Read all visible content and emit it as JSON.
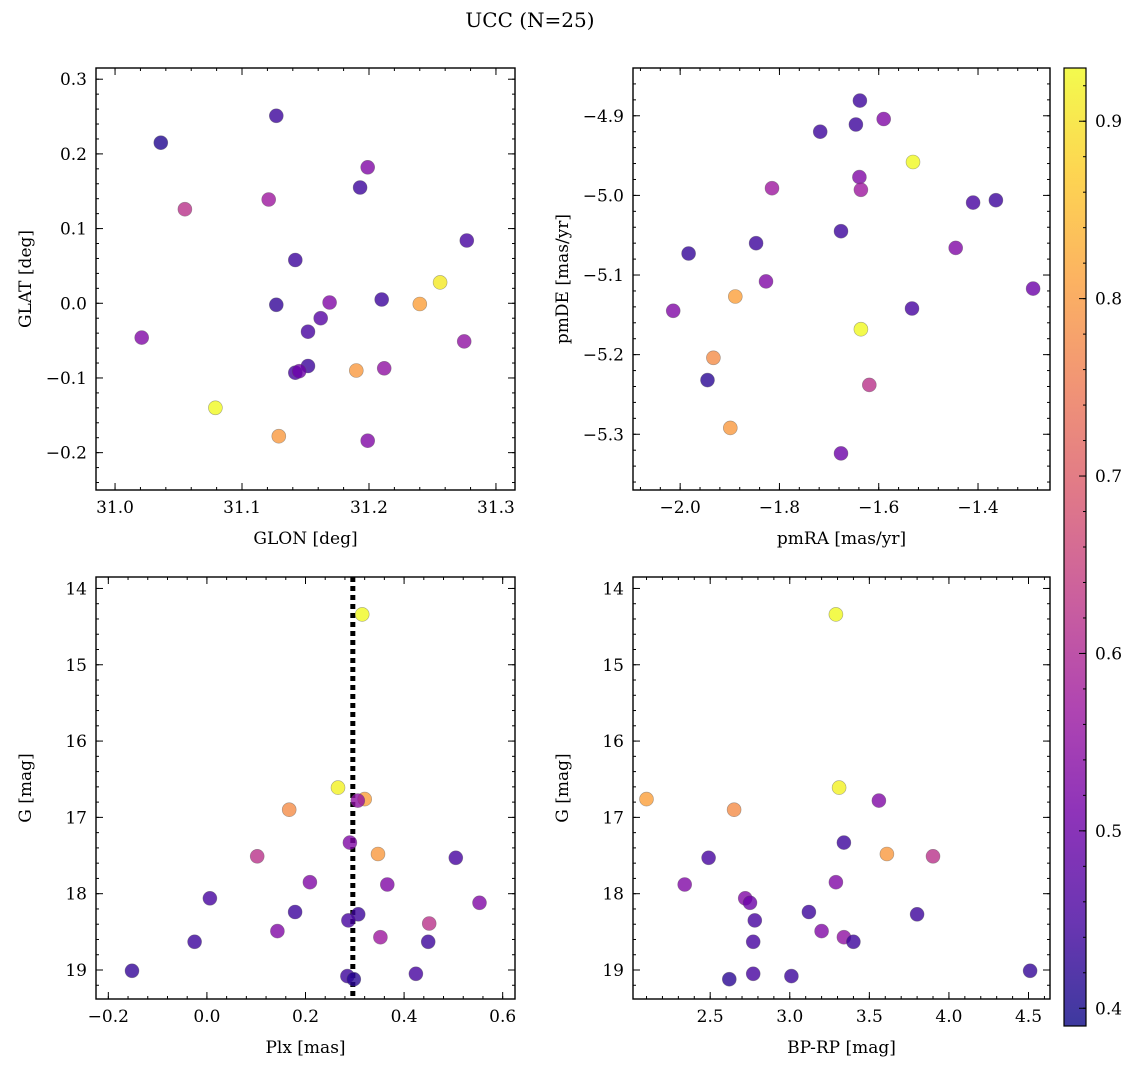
{
  "figure": {
    "title": "UCC (N=25)",
    "colormap": [
      "#0d0887",
      "#46039f",
      "#7201a8",
      "#9c179e",
      "#bd3786",
      "#d8576b",
      "#ed7953",
      "#fb9f3a",
      "#fdca26",
      "#f0f921"
    ],
    "marker_alpha": 0.8,
    "colorbar": {
      "ticks": [
        0.4,
        0.5,
        0.6,
        0.7,
        0.8,
        0.9
      ],
      "range": [
        0.39,
        0.93
      ]
    }
  },
  "chart_data": [
    {
      "id": "glon_glat",
      "type": "scatter",
      "xlabel": "GLON [deg]",
      "ylabel": "GLAT [deg]",
      "xlim": [
        30.985,
        31.315
      ],
      "ylim": [
        -0.25,
        0.315
      ],
      "xticks": [
        31.0,
        31.1,
        31.2,
        31.3
      ],
      "xtick_labels": [
        "31.0",
        "31.1",
        "31.2",
        "31.3"
      ],
      "yticks": [
        -0.2,
        -0.1,
        0.0,
        0.1,
        0.2,
        0.3
      ],
      "ytick_labels": [
        "−0.2",
        "−0.1",
        "0.0",
        "0.1",
        "0.2",
        "0.3"
      ],
      "invert_y": false,
      "points": [
        {
          "x": 31.036,
          "y": 0.215,
          "c": 0.41
        },
        {
          "x": 31.127,
          "y": 0.251,
          "c": 0.44
        },
        {
          "x": 31.055,
          "y": 0.126,
          "c": 0.62
        },
        {
          "x": 31.121,
          "y": 0.139,
          "c": 0.57
        },
        {
          "x": 31.199,
          "y": 0.182,
          "c": 0.53
        },
        {
          "x": 31.193,
          "y": 0.155,
          "c": 0.44
        },
        {
          "x": 31.277,
          "y": 0.084,
          "c": 0.45
        },
        {
          "x": 31.142,
          "y": 0.058,
          "c": 0.44
        },
        {
          "x": 31.256,
          "y": 0.028,
          "c": 0.91
        },
        {
          "x": 31.127,
          "y": -0.002,
          "c": 0.43
        },
        {
          "x": 31.169,
          "y": 0.001,
          "c": 0.53
        },
        {
          "x": 31.21,
          "y": 0.005,
          "c": 0.44
        },
        {
          "x": 31.24,
          "y": -0.001,
          "c": 0.81
        },
        {
          "x": 31.162,
          "y": -0.02,
          "c": 0.47
        },
        {
          "x": 31.152,
          "y": -0.038,
          "c": 0.45
        },
        {
          "x": 31.021,
          "y": -0.046,
          "c": 0.53
        },
        {
          "x": 31.275,
          "y": -0.051,
          "c": 0.55
        },
        {
          "x": 31.152,
          "y": -0.084,
          "c": 0.44
        },
        {
          "x": 31.142,
          "y": -0.093,
          "c": 0.45
        },
        {
          "x": 31.145,
          "y": -0.091,
          "c": 0.5
        },
        {
          "x": 31.19,
          "y": -0.09,
          "c": 0.8
        },
        {
          "x": 31.212,
          "y": -0.087,
          "c": 0.55
        },
        {
          "x": 31.079,
          "y": -0.14,
          "c": 0.93
        },
        {
          "x": 31.129,
          "y": -0.178,
          "c": 0.8
        },
        {
          "x": 31.199,
          "y": -0.184,
          "c": 0.53
        }
      ]
    },
    {
      "id": "pm",
      "type": "scatter",
      "xlabel": "pmRA [mas/yr]",
      "ylabel": "pmDE [mas/yr]",
      "xlim": [
        -2.095,
        -1.255
      ],
      "ylim": [
        -5.37,
        -4.84
      ],
      "xticks": [
        -2.0,
        -1.8,
        -1.6,
        -1.4
      ],
      "xtick_labels": [
        "−2.0",
        "−1.8",
        "−1.6",
        "−1.4"
      ],
      "yticks": [
        -5.3,
        -5.2,
        -5.1,
        -5.0,
        -4.9
      ],
      "ytick_labels": [
        "−5.3",
        "−5.2",
        "−5.1",
        "−5.0",
        "−4.9"
      ],
      "invert_y": false,
      "points": [
        {
          "x": -1.638,
          "y": -4.881,
          "c": 0.44
        },
        {
          "x": -1.59,
          "y": -4.904,
          "c": 0.53
        },
        {
          "x": -1.646,
          "y": -4.911,
          "c": 0.44
        },
        {
          "x": -1.718,
          "y": -4.92,
          "c": 0.44
        },
        {
          "x": -1.531,
          "y": -4.958,
          "c": 0.93
        },
        {
          "x": -1.639,
          "y": -4.977,
          "c": 0.53
        },
        {
          "x": -1.815,
          "y": -4.991,
          "c": 0.57
        },
        {
          "x": -1.636,
          "y": -4.993,
          "c": 0.57
        },
        {
          "x": -1.41,
          "y": -5.009,
          "c": 0.45
        },
        {
          "x": -1.364,
          "y": -5.006,
          "c": 0.44
        },
        {
          "x": -1.676,
          "y": -5.045,
          "c": 0.44
        },
        {
          "x": -1.847,
          "y": -5.06,
          "c": 0.44
        },
        {
          "x": -1.445,
          "y": -5.066,
          "c": 0.53
        },
        {
          "x": -1.983,
          "y": -5.073,
          "c": 0.43
        },
        {
          "x": -1.827,
          "y": -5.108,
          "c": 0.53
        },
        {
          "x": -1.289,
          "y": -5.117,
          "c": 0.5
        },
        {
          "x": -1.889,
          "y": -5.127,
          "c": 0.81
        },
        {
          "x": -1.533,
          "y": -5.142,
          "c": 0.45
        },
        {
          "x": -2.014,
          "y": -5.145,
          "c": 0.53
        },
        {
          "x": -1.636,
          "y": -5.168,
          "c": 0.93
        },
        {
          "x": -1.933,
          "y": -5.204,
          "c": 0.78
        },
        {
          "x": -1.945,
          "y": -5.232,
          "c": 0.42
        },
        {
          "x": -1.619,
          "y": -5.238,
          "c": 0.62
        },
        {
          "x": -1.899,
          "y": -5.292,
          "c": 0.8
        },
        {
          "x": -1.676,
          "y": -5.324,
          "c": 0.5
        }
      ]
    },
    {
      "id": "plx_g",
      "type": "scatter",
      "xlabel": "Plx [mas]",
      "ylabel": "G [mag]",
      "xlim": [
        -0.225,
        0.625
      ],
      "ylim": [
        13.85,
        19.38
      ],
      "xticks": [
        -0.2,
        0.0,
        0.2,
        0.4,
        0.6
      ],
      "xtick_labels": [
        "−0.2",
        "0.0",
        "0.2",
        "0.4",
        "0.6"
      ],
      "yticks": [
        14,
        15,
        16,
        17,
        18,
        19
      ],
      "ytick_labels": [
        "14",
        "15",
        "16",
        "17",
        "18",
        "19"
      ],
      "invert_y": true,
      "vline": {
        "x": 0.296,
        "style": "dotted"
      },
      "points": [
        {
          "x": 0.315,
          "y": 14.34,
          "c": 0.93
        },
        {
          "x": 0.266,
          "y": 16.61,
          "c": 0.92
        },
        {
          "x": 0.32,
          "y": 16.76,
          "c": 0.81
        },
        {
          "x": 0.306,
          "y": 16.78,
          "c": 0.55
        },
        {
          "x": 0.167,
          "y": 16.9,
          "c": 0.78
        },
        {
          "x": 0.29,
          "y": 17.33,
          "c": 0.53
        },
        {
          "x": 0.347,
          "y": 17.48,
          "c": 0.8
        },
        {
          "x": 0.102,
          "y": 17.51,
          "c": 0.62
        },
        {
          "x": 0.505,
          "y": 17.53,
          "c": 0.45
        },
        {
          "x": 0.209,
          "y": 17.85,
          "c": 0.53
        },
        {
          "x": 0.366,
          "y": 17.88,
          "c": 0.53
        },
        {
          "x": 0.006,
          "y": 18.06,
          "c": 0.45
        },
        {
          "x": 0.553,
          "y": 18.12,
          "c": 0.53
        },
        {
          "x": 0.179,
          "y": 18.24,
          "c": 0.44
        },
        {
          "x": 0.307,
          "y": 18.27,
          "c": 0.44
        },
        {
          "x": 0.287,
          "y": 18.35,
          "c": 0.45
        },
        {
          "x": 0.451,
          "y": 18.39,
          "c": 0.62
        },
        {
          "x": 0.143,
          "y": 18.49,
          "c": 0.53
        },
        {
          "x": 0.352,
          "y": 18.57,
          "c": 0.57
        },
        {
          "x": -0.025,
          "y": 18.63,
          "c": 0.44
        },
        {
          "x": 0.449,
          "y": 18.63,
          "c": 0.44
        },
        {
          "x": -0.152,
          "y": 19.01,
          "c": 0.43
        },
        {
          "x": 0.424,
          "y": 19.05,
          "c": 0.45
        },
        {
          "x": 0.285,
          "y": 19.08,
          "c": 0.44
        },
        {
          "x": 0.298,
          "y": 19.12,
          "c": 0.42
        }
      ]
    },
    {
      "id": "cmd",
      "type": "scatter",
      "xlabel": "BP-RP [mag]",
      "ylabel": "G [mag]",
      "xlim": [
        2.015,
        4.635
      ],
      "ylim": [
        13.85,
        19.38
      ],
      "xticks": [
        2.5,
        3.0,
        3.5,
        4.0,
        4.5
      ],
      "xtick_labels": [
        "2.5",
        "3.0",
        "3.5",
        "4.0",
        "4.5"
      ],
      "yticks": [
        14,
        15,
        16,
        17,
        18,
        19
      ],
      "ytick_labels": [
        "14",
        "15",
        "16",
        "17",
        "18",
        "19"
      ],
      "invert_y": true,
      "points": [
        {
          "x": 3.29,
          "y": 14.34,
          "c": 0.93
        },
        {
          "x": 3.31,
          "y": 16.61,
          "c": 0.92
        },
        {
          "x": 2.1,
          "y": 16.76,
          "c": 0.81
        },
        {
          "x": 3.56,
          "y": 16.78,
          "c": 0.53
        },
        {
          "x": 2.65,
          "y": 16.9,
          "c": 0.78
        },
        {
          "x": 3.34,
          "y": 17.33,
          "c": 0.44
        },
        {
          "x": 3.61,
          "y": 17.48,
          "c": 0.8
        },
        {
          "x": 3.9,
          "y": 17.51,
          "c": 0.62
        },
        {
          "x": 2.49,
          "y": 17.53,
          "c": 0.45
        },
        {
          "x": 3.29,
          "y": 17.85,
          "c": 0.53
        },
        {
          "x": 2.34,
          "y": 17.88,
          "c": 0.53
        },
        {
          "x": 2.72,
          "y": 18.06,
          "c": 0.53
        },
        {
          "x": 2.75,
          "y": 18.12,
          "c": 0.5
        },
        {
          "x": 3.12,
          "y": 18.24,
          "c": 0.44
        },
        {
          "x": 3.8,
          "y": 18.27,
          "c": 0.44
        },
        {
          "x": 2.78,
          "y": 18.35,
          "c": 0.45
        },
        {
          "x": 3.2,
          "y": 18.49,
          "c": 0.53
        },
        {
          "x": 3.34,
          "y": 18.57,
          "c": 0.55
        },
        {
          "x": 2.77,
          "y": 18.63,
          "c": 0.45
        },
        {
          "x": 3.4,
          "y": 18.63,
          "c": 0.44
        },
        {
          "x": 4.51,
          "y": 19.01,
          "c": 0.43
        },
        {
          "x": 2.77,
          "y": 19.05,
          "c": 0.45
        },
        {
          "x": 3.01,
          "y": 19.08,
          "c": 0.44
        },
        {
          "x": 2.62,
          "y": 19.12,
          "c": 0.42
        }
      ]
    }
  ]
}
